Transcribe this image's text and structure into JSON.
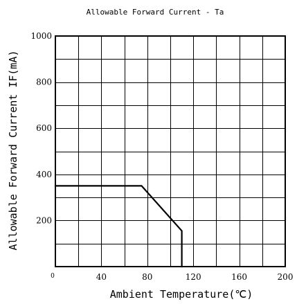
{
  "chart_data": {
    "type": "line",
    "title": "Allowable Forward Current - Ta",
    "xlabel": "Ambient Temperature(℃)",
    "ylabel": "Allowable Forward Current IF(mA)",
    "xlim": [
      0,
      200
    ],
    "ylim": [
      0,
      1000
    ],
    "x_ticks": [
      {
        "value": 0,
        "label": "0"
      },
      {
        "value": 40,
        "label": "40"
      },
      {
        "value": 80,
        "label": "80"
      },
      {
        "value": 120,
        "label": "120"
      },
      {
        "value": 160,
        "label": "160"
      },
      {
        "value": 200,
        "label": "200"
      }
    ],
    "y_ticks": [
      {
        "value": 200,
        "label": "200"
      },
      {
        "value": 400,
        "label": "400"
      },
      {
        "value": 600,
        "label": "600"
      },
      {
        "value": 800,
        "label": "800"
      },
      {
        "value": 1000,
        "label": "1000"
      }
    ],
    "x_grid_step": 20,
    "y_grid_step": 100,
    "grid": true,
    "legend": "none",
    "series": [
      {
        "points": [
          {
            "x": 0,
            "y": 350
          },
          {
            "x": 75,
            "y": 350
          },
          {
            "x": 110,
            "y": 155
          },
          {
            "x": 110,
            "y": 0
          }
        ],
        "color": "#000000"
      }
    ]
  }
}
